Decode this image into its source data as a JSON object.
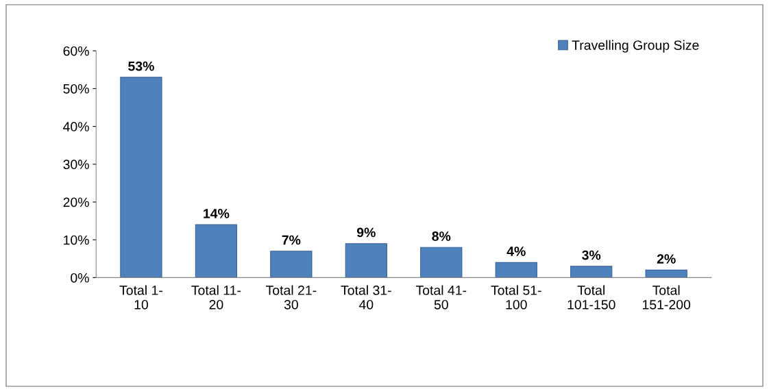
{
  "chart_data": {
    "type": "bar",
    "categories": [
      "Total 1-10",
      "Total 11-20",
      "Total 21-30",
      "Total 31-40",
      "Total 41-50",
      "Total 51-100",
      "Total 101-150",
      "Total 151-200"
    ],
    "series": [
      {
        "name": "Travelling Group Size",
        "color": "#4f81bd",
        "values": [
          53,
          14,
          7,
          9,
          8,
          4,
          3,
          2
        ],
        "value_labels": [
          "53%",
          "14%",
          "7%",
          "9%",
          "8%",
          "4%",
          "3%",
          "2%"
        ]
      }
    ],
    "ylim": [
      0,
      60
    ],
    "yticks": [
      {
        "value": 0,
        "label": "0%"
      },
      {
        "value": 10,
        "label": "10%"
      },
      {
        "value": 20,
        "label": "20%"
      },
      {
        "value": 30,
        "label": "30%"
      },
      {
        "value": 40,
        "label": "40%"
      },
      {
        "value": 50,
        "label": "50%"
      },
      {
        "value": 60,
        "label": "60%"
      }
    ],
    "legend": "top right",
    "grid": false
  }
}
